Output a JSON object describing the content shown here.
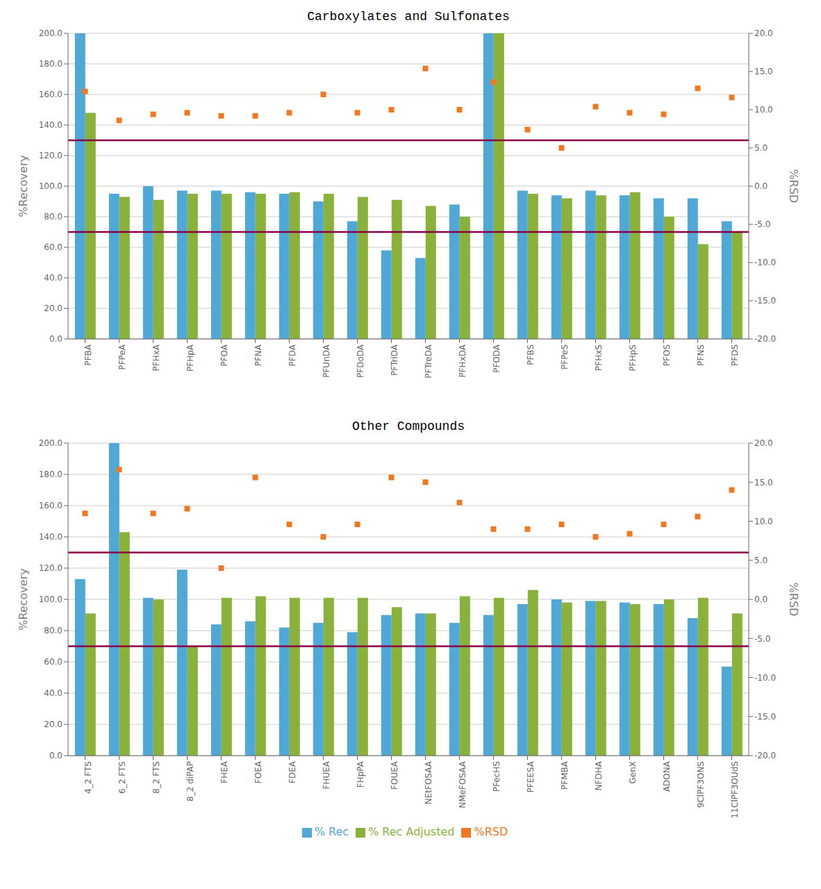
{
  "chart_data": [
    {
      "type": "bar",
      "title": "Carboxylates and Sulfonates",
      "categories": [
        "PFBA",
        "PFPeA",
        "PFHxA",
        "PFHpA",
        "PFOA",
        "PFNA",
        "PFDA",
        "PFUnDA",
        "PFDoDA",
        "PFTriDA",
        "PFTreDA",
        "PFHxDA",
        "PFODA",
        "PFBS",
        "PFPeS",
        "PFHxS",
        "PFHpS",
        "PFOS",
        "PFNS",
        "PFDS"
      ],
      "series": [
        {
          "name": "% Rec",
          "color": "#4fa8d5",
          "values": [
            200,
            95,
            100,
            97,
            97,
            96,
            95,
            90,
            77,
            58,
            53,
            88,
            200,
            97,
            94,
            97,
            94,
            92,
            92,
            77
          ]
        },
        {
          "name": "% Rec Adjusted",
          "color": "#8ab23a",
          "values": [
            148,
            93,
            91,
            95,
            95,
            95,
            96,
            95,
            93,
            91,
            87,
            80,
            200,
            95,
            92,
            94,
            96,
            80,
            62,
            70
          ]
        },
        {
          "name": "%RSD",
          "color": "#f07820",
          "type": "scatter",
          "marker": "square",
          "axis": "y2",
          "values": [
            12.4,
            8.6,
            9.4,
            9.6,
            9.2,
            9.2,
            9.6,
            12.0,
            9.6,
            10.0,
            15.4,
            10.0,
            13.6,
            7.4,
            5.0,
            10.4,
            9.6,
            9.4,
            12.8,
            11.6
          ]
        }
      ],
      "ylabel": "%Recovery",
      "y2label": "%RSD",
      "ylim": [
        0,
        200
      ],
      "yticks": [
        {
          "value": 0,
          "label": "0.0"
        },
        {
          "value": 20,
          "label": "20.0"
        },
        {
          "value": 40,
          "label": "40.0"
        },
        {
          "value": 60,
          "label": "60.0"
        },
        {
          "value": 80,
          "label": "80.0"
        },
        {
          "value": 100,
          "label": "100.0"
        },
        {
          "value": 120,
          "label": "120.0"
        },
        {
          "value": 140,
          "label": "140.0"
        },
        {
          "value": 160,
          "label": "160.0"
        },
        {
          "value": 180,
          "label": "180.0"
        },
        {
          "value": 200,
          "label": "200.0"
        }
      ],
      "y2lim": [
        -20,
        20
      ],
      "y2ticks": [
        {
          "value": -20,
          "label": "-20.0"
        },
        {
          "value": -15,
          "label": "-15.0"
        },
        {
          "value": -10,
          "label": "-10.0"
        },
        {
          "value": -5,
          "label": "-5.0"
        },
        {
          "value": 0,
          "label": "0.0"
        },
        {
          "value": 5,
          "label": "5.0"
        },
        {
          "value": 10,
          "label": "10.0"
        },
        {
          "value": 15,
          "label": "15.0"
        },
        {
          "value": 20,
          "label": "20.0"
        }
      ],
      "hlines": [
        {
          "value": 130,
          "color": "#8b0045"
        },
        {
          "value": 70,
          "color": "#8b0045"
        }
      ],
      "grid": true
    },
    {
      "type": "bar",
      "title": "Other Compounds",
      "categories": [
        "4_2 FTS",
        "6_2 FTS",
        "8_2 FTS",
        "8_2 diPAP",
        "FHEA",
        "FOEA",
        "FDEA",
        "FHUEA",
        "FHpPA",
        "FOUEA",
        "NEtFOSAA",
        "NMeFOSAA",
        "PFecHS",
        "PFEESA",
        "PFMBA",
        "NFDHA",
        "GenX",
        "ADONA",
        "9ClPF3ONS",
        "11ClPF3OUdS"
      ],
      "series": [
        {
          "name": "% Rec",
          "color": "#4fa8d5",
          "values": [
            113,
            200,
            101,
            119,
            84,
            86,
            82,
            85,
            79,
            90,
            91,
            85,
            90,
            97,
            100,
            99,
            98,
            97,
            88,
            57
          ]
        },
        {
          "name": "% Rec Adjusted",
          "color": "#8ab23a",
          "values": [
            91,
            143,
            100,
            70,
            101,
            102,
            101,
            101,
            101,
            95,
            91,
            102,
            101,
            106,
            98,
            99,
            97,
            100,
            101,
            91
          ]
        },
        {
          "name": "%RSD",
          "color": "#f07820",
          "type": "scatter",
          "marker": "square",
          "axis": "y2",
          "values": [
            11.0,
            16.6,
            11.0,
            11.6,
            4.0,
            15.6,
            9.6,
            8.0,
            9.6,
            15.6,
            15.0,
            12.4,
            9.0,
            9.0,
            9.6,
            8.0,
            8.4,
            9.6,
            10.6,
            14.0
          ]
        }
      ],
      "ylabel": "%Recovery",
      "y2label": "%RSD",
      "ylim": [
        0,
        200
      ],
      "yticks": [
        {
          "value": 0,
          "label": "0.0"
        },
        {
          "value": 20,
          "label": "20.0"
        },
        {
          "value": 40,
          "label": "40.0"
        },
        {
          "value": 60,
          "label": "60.0"
        },
        {
          "value": 80,
          "label": "80.0"
        },
        {
          "value": 100,
          "label": "100.0"
        },
        {
          "value": 120,
          "label": "120.0"
        },
        {
          "value": 140,
          "label": "140.0"
        },
        {
          "value": 160,
          "label": "160.0"
        },
        {
          "value": 180,
          "label": "180.0"
        },
        {
          "value": 200,
          "label": "200.0"
        }
      ],
      "y2lim": [
        -20,
        20
      ],
      "y2ticks": [
        {
          "value": -20,
          "label": "-20.0"
        },
        {
          "value": -15,
          "label": "-15.0"
        },
        {
          "value": -10,
          "label": "-10.0"
        },
        {
          "value": -5,
          "label": "-5.0"
        },
        {
          "value": 0,
          "label": "0.0"
        },
        {
          "value": 5,
          "label": "5.0"
        },
        {
          "value": 10,
          "label": "10.0"
        },
        {
          "value": 15,
          "label": "15.0"
        },
        {
          "value": 20,
          "label": "20.0"
        }
      ],
      "hlines": [
        {
          "value": 130,
          "color": "#8b0045"
        },
        {
          "value": 70,
          "color": "#8b0045"
        }
      ],
      "grid": true,
      "legend": "bottom"
    }
  ]
}
